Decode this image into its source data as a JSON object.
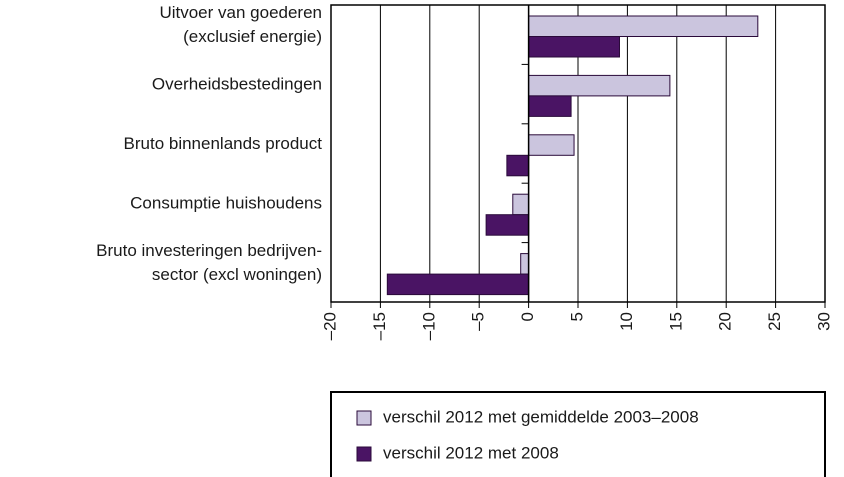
{
  "chart_data": {
    "type": "bar",
    "orientation": "horizontal",
    "categories": [
      [
        "Uitvoer van goederen",
        "(exclusief energie)"
      ],
      [
        "Overheidsbestedingen"
      ],
      [
        "Bruto binnenlands product"
      ],
      [
        "Consumptie huishoudens"
      ],
      [
        "Bruto investeringen bedrijven-",
        "sector (excl woningen)"
      ]
    ],
    "series": [
      {
        "name": "verschil 2012 met gemiddelde 2003–2008",
        "color": "#cbc5de",
        "values": [
          23.2,
          14.3,
          4.6,
          -1.6,
          -0.8
        ]
      },
      {
        "name": "verschil 2012 met 2008",
        "color": "#4a1464",
        "values": [
          9.2,
          4.3,
          -2.2,
          -4.3,
          -14.3
        ]
      }
    ],
    "xlim": [
      -20,
      30
    ],
    "xticks": [
      {
        "value": -20,
        "label": "–20"
      },
      {
        "value": -15,
        "label": "–15"
      },
      {
        "value": -10,
        "label": "–10"
      },
      {
        "value": -5,
        "label": "–5"
      },
      0,
      5,
      10,
      15,
      20,
      25,
      30
    ],
    "grid": true,
    "legend": "bottom"
  }
}
